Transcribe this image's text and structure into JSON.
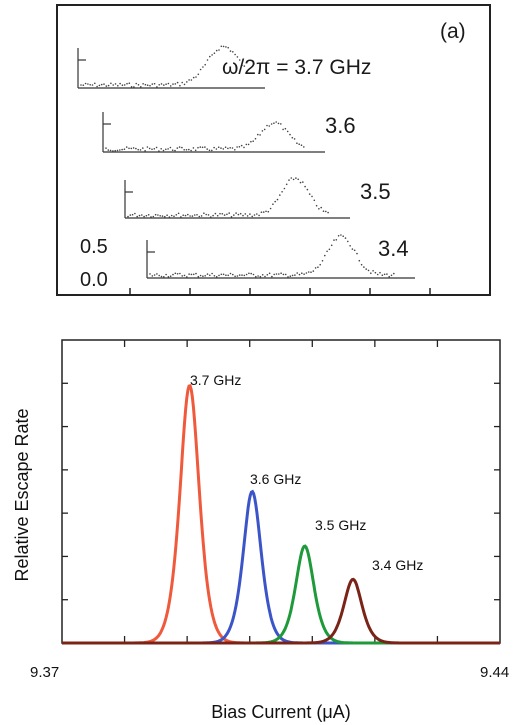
{
  "panel_top": {
    "label": "(a)",
    "freq_label_prefix": "ω/2π = ",
    "freq_unit": " GHz",
    "y_tick_labels": [
      "0.5",
      "0.0"
    ],
    "traces": [
      {
        "label": "3.7",
        "peak_x": 0.39,
        "height": 0.48,
        "width": 0.055
      },
      {
        "label": "3.6",
        "peak_x": 0.51,
        "height": 0.33,
        "width": 0.045
      },
      {
        "label": "3.5",
        "peak_x": 0.56,
        "height": 0.46,
        "width": 0.045
      },
      {
        "label": "3.4",
        "peak_x": 0.67,
        "height": 0.48,
        "width": 0.045
      }
    ]
  },
  "chart_data": {
    "type": "line",
    "title": "",
    "xlabel": "Bias Current  (μA)",
    "ylabel": "Relative Escape Rate",
    "xlim": [
      9.37,
      9.44
    ],
    "ylim": [
      0,
      1.0
    ],
    "x_tick_labels": [
      "9.37",
      "9.44"
    ],
    "grid": false,
    "series": [
      {
        "name": "3.7 GHz",
        "color": "#f05a3c",
        "center": 9.3904,
        "peak": 0.85,
        "sigma": 0.0018
      },
      {
        "name": "3.6 GHz",
        "color": "#3b55c8",
        "center": 9.4004,
        "peak": 0.5,
        "sigma": 0.0017
      },
      {
        "name": "3.5 GHz",
        "color": "#1f9a3a",
        "center": 9.4088,
        "peak": 0.32,
        "sigma": 0.0017
      },
      {
        "name": "3.4 GHz",
        "color": "#7a2418",
        "center": 9.4165,
        "peak": 0.21,
        "sigma": 0.0017
      }
    ]
  }
}
